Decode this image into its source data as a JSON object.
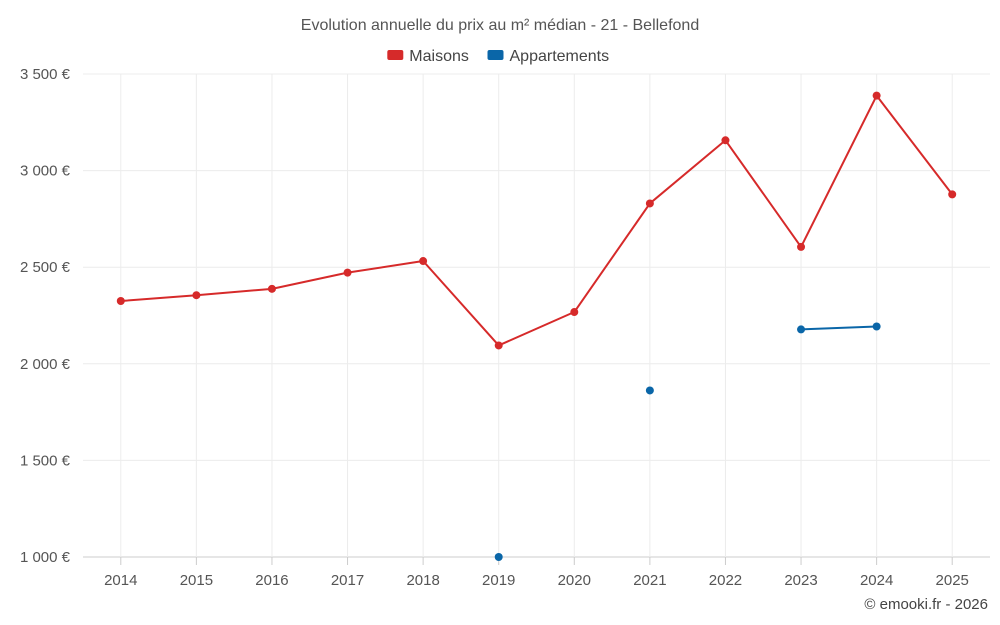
{
  "chart_data": {
    "type": "line",
    "title": "Evolution annuelle du prix au m² médian - 21 - Bellefond",
    "categories": [
      "2014",
      "2015",
      "2016",
      "2017",
      "2018",
      "2019",
      "2020",
      "2021",
      "2022",
      "2023",
      "2024",
      "2025"
    ],
    "series": [
      {
        "name": "Maisons",
        "color": "#d62a2a",
        "values": [
          2325,
          2355,
          2388,
          2472,
          2532,
          2095,
          2268,
          2830,
          3157,
          2605,
          3388,
          2877
        ]
      },
      {
        "name": "Appartements",
        "color": "#0a66a8",
        "values": [
          null,
          null,
          null,
          null,
          null,
          1000,
          null,
          1862,
          null,
          2178,
          2193,
          null
        ]
      }
    ],
    "y_ticks": [
      {
        "value": 1000,
        "label": "1 000 €"
      },
      {
        "value": 1500,
        "label": "1 500 €"
      },
      {
        "value": 2000,
        "label": "2 000 €"
      },
      {
        "value": 2500,
        "label": "2 500 €"
      },
      {
        "value": 3000,
        "label": "3 000 €"
      },
      {
        "value": 3500,
        "label": "3 500 €"
      }
    ],
    "ylim": [
      1000,
      3500
    ],
    "xlabel": "",
    "ylabel": "",
    "legend_position": "top-center",
    "grid": true
  },
  "credit": "© emooki.fr - 2026"
}
